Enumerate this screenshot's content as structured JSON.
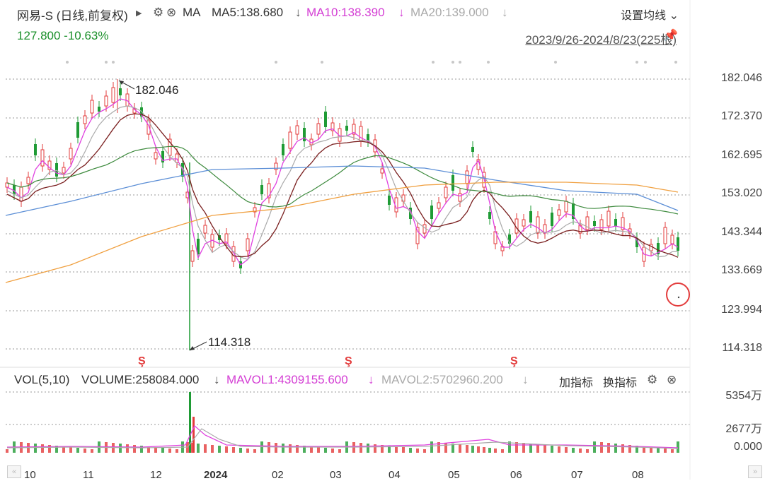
{
  "header": {
    "title": "网易-S (日线,前复权)",
    "ma_label": "MA",
    "ma5": "MA5:138.680",
    "ma10": "MA10:138.390",
    "ma20": "MA20:139.000",
    "settings_label": "设置均线",
    "price_change": "127.800 -10.63%",
    "date_range": "2023/9/26-2024/8/23(225根)"
  },
  "colors": {
    "ma5": "#e040e0",
    "ma10": "#e040e0",
    "ma20": "#aaaaaa",
    "up": "#e33b3b",
    "down": "#1f9b35",
    "ma_brown": "#7a1f1f",
    "ma_green": "#3d8a3d",
    "ma_blue": "#5b8ed6",
    "ma_orange": "#f0a040"
  },
  "price_axis": [
    "182.046",
    "172.370",
    "162.695",
    "153.020",
    "143.344",
    "133.669",
    "123.994",
    "114.318"
  ],
  "annotations": {
    "high": "182.046",
    "low": "114.318"
  },
  "volume": {
    "title": "VOL(5,10)",
    "volume": "VOLUME:258084.000",
    "mavol1": "MAVOL1:4309155.600",
    "mavol2": "MAVOL2:5702960.200",
    "add_indicator": "加指标",
    "switch_indicator": "换指标",
    "axis": [
      "5354万",
      "2677万",
      "0.000"
    ]
  },
  "months": [
    "10",
    "11",
    "12",
    "2024",
    "02",
    "03",
    "04",
    "05",
    "06",
    "07",
    "08"
  ],
  "icons": {
    "play": "play-icon",
    "gear": "gear-icon",
    "close": "close-icon",
    "arrow": "down-arrow-icon",
    "pin": "pin-icon",
    "dividend": "dividend-icon"
  }
}
